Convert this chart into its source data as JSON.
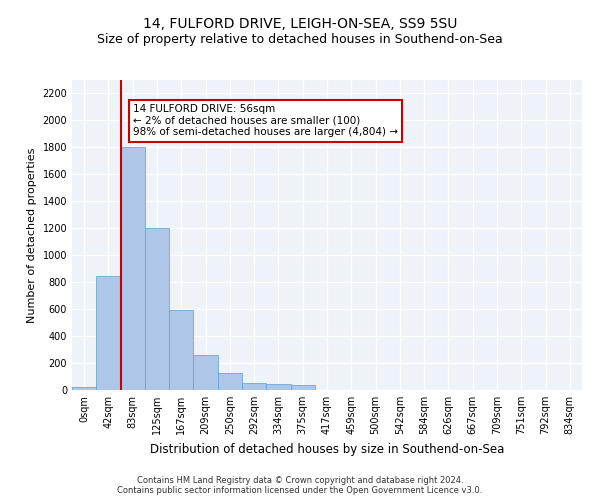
{
  "title_line1": "14, FULFORD DRIVE, LEIGH-ON-SEA, SS9 5SU",
  "title_line2": "Size of property relative to detached houses in Southend-on-Sea",
  "xlabel": "Distribution of detached houses by size in Southend-on-Sea",
  "ylabel": "Number of detached properties",
  "bar_labels": [
    "0sqm",
    "42sqm",
    "83sqm",
    "125sqm",
    "167sqm",
    "209sqm",
    "250sqm",
    "292sqm",
    "334sqm",
    "375sqm",
    "417sqm",
    "459sqm",
    "500sqm",
    "542sqm",
    "584sqm",
    "626sqm",
    "667sqm",
    "709sqm",
    "751sqm",
    "792sqm",
    "834sqm"
  ],
  "bar_values": [
    25,
    845,
    1800,
    1200,
    590,
    260,
    125,
    50,
    48,
    35,
    0,
    0,
    0,
    0,
    0,
    0,
    0,
    0,
    0,
    0,
    0
  ],
  "bar_color": "#aec6e8",
  "bar_edge_color": "#5a9fd4",
  "ylim": [
    0,
    2300
  ],
  "yticks": [
    0,
    200,
    400,
    600,
    800,
    1000,
    1200,
    1400,
    1600,
    1800,
    2000,
    2200
  ],
  "vline_x": 1.5,
  "vline_color": "#cc0000",
  "annotation_text": "14 FULFORD DRIVE: 56sqm\n← 2% of detached houses are smaller (100)\n98% of semi-detached houses are larger (4,804) →",
  "annotation_box_color": "#ffffff",
  "annotation_box_edge": "#cc0000",
  "footer_line1": "Contains HM Land Registry data © Crown copyright and database right 2024.",
  "footer_line2": "Contains public sector information licensed under the Open Government Licence v3.0.",
  "bg_color": "#eef3fa",
  "grid_color": "#ffffff",
  "title_fontsize": 10,
  "subtitle_fontsize": 9,
  "ylabel_fontsize": 8,
  "xlabel_fontsize": 8.5,
  "tick_fontsize": 7,
  "footer_fontsize": 6
}
